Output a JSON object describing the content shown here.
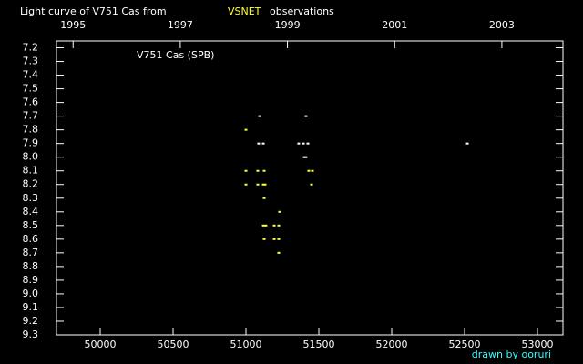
{
  "chart_data": {
    "type": "scatter",
    "title": "Light curve of V751 Cas from",
    "title_highlight": "VSNET",
    "title_suffix": "observations",
    "annotation": "V751 Cas (SPB)",
    "credit": "drawn by ooruri",
    "xlim": [
      49700,
      53175
    ],
    "xticks": [
      50000,
      50500,
      51000,
      51500,
      52000,
      52500,
      53000
    ],
    "x2lim": [
      1994.69,
      2004.14
    ],
    "x2ticks": [
      1995,
      1997,
      1999,
      2001,
      2003
    ],
    "ylim": [
      9.3,
      7.15
    ],
    "yticks": [
      7.2,
      7.3,
      7.4,
      7.5,
      7.6,
      7.7,
      7.8,
      7.9,
      {
        "value": 8,
        "label": "8.0"
      },
      8.1,
      8.2,
      8.3,
      8.4,
      8.5,
      8.6,
      8.7,
      8.8,
      8.9,
      {
        "value": 9,
        "label": "9.0"
      },
      9.1,
      9.2,
      9.3
    ],
    "series": [
      {
        "color": "#ffffff",
        "x": [
          51094,
          51412,
          51087,
          51119,
          51362,
          51394,
          51425,
          51400,
          51412,
          52519
        ],
        "values": [
          7.7,
          7.7,
          7.9,
          7.9,
          7.9,
          7.9,
          7.9,
          8,
          8,
          7.9
        ]
      },
      {
        "color": "#ffff33",
        "x": [
          51000,
          51000,
          51081,
          51125,
          51431,
          51456,
          51000,
          51081,
          51119,
          51131,
          51450,
          51125,
          51231,
          51119,
          51137,
          51194,
          51225,
          51125,
          51194,
          51225,
          51225
        ],
        "values": [
          7.8,
          8.1,
          8.1,
          8.1,
          8.1,
          8.1,
          8.2,
          8.2,
          8.2,
          8.2,
          8.2,
          8.3,
          8.4,
          8.5,
          8.5,
          8.5,
          8.5,
          8.6,
          8.6,
          8.6,
          8.7
        ]
      }
    ]
  }
}
